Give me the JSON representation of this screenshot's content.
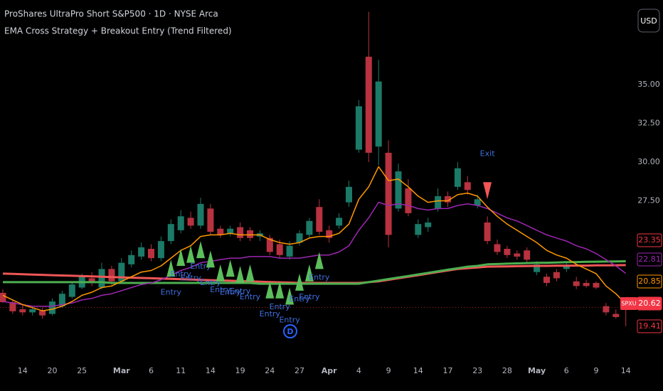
{
  "header": {
    "title": "ProShares UltraPro Short S&P500 · 1D · NYSE Arca",
    "indicator": "EMA Cross Strategy + Breakout Entry (Trend Filtered)",
    "currency_button": "USD"
  },
  "chart_data": {
    "type": "candlestick",
    "categories": [
      null,
      null,
      "14",
      null,
      null,
      "20",
      null,
      null,
      "25",
      null,
      null,
      null,
      "Mar",
      null,
      null,
      "6",
      null,
      null,
      "11",
      null,
      null,
      "14",
      null,
      null,
      "19",
      null,
      null,
      "24",
      null,
      null,
      "27",
      null,
      null,
      "Apr",
      null,
      null,
      "4",
      null,
      null,
      "9",
      null,
      null,
      "14",
      null,
      null,
      "17",
      null,
      null,
      "23",
      null,
      null,
      "28",
      null,
      null,
      "May",
      null,
      null,
      "6",
      null,
      null,
      "9",
      null,
      null,
      "14"
    ],
    "open": [
      21.56,
      20.96,
      20.5,
      20.3,
      20.4,
      20.2,
      20.7,
      21.3,
      21.9,
      22.5,
      21.9,
      23.1,
      22.3,
      23.4,
      23.9,
      24.4,
      23.8,
      24.9,
      25.6,
      26.4,
      25.9,
      27.0,
      25.7,
      25.4,
      25.8,
      25.6,
      25.2,
      25.1,
      24.7,
      23.9,
      24.8,
      25.3,
      27.1,
      25.6,
      25.9,
      27.4,
      30.8,
      36.8,
      31.0,
      30.6,
      27.0,
      28.3,
      25.3,
      25.8,
      27.0,
      27.8,
      28.4,
      28.7,
      27.2,
      26.1,
      24.7,
      24.4,
      24.1,
      24.3,
      22.9,
      22.6,
      22.9,
      23.1,
      22.3,
      22.2,
      22.2,
      20.7,
      20.2,
      20.9
    ],
    "high": [
      21.8,
      21.1,
      20.8,
      20.7,
      20.6,
      21.2,
      21.7,
      22.3,
      22.8,
      22.9,
      23.5,
      23.3,
      23.8,
      24.3,
      24.8,
      24.7,
      25.2,
      26.3,
      26.9,
      26.8,
      27.7,
      27.3,
      25.9,
      25.9,
      26.1,
      25.8,
      25.6,
      25.3,
      25.0,
      24.9,
      25.6,
      26.4,
      27.6,
      25.9,
      26.7,
      28.8,
      34.0,
      39.7,
      36.6,
      31.4,
      29.9,
      28.9,
      26.3,
      26.4,
      28.3,
      28.1,
      30.0,
      29.1,
      27.9,
      26.5,
      25.0,
      24.6,
      24.3,
      24.5,
      23.6,
      22.8,
      23.1,
      23.5,
      22.6,
      22.4,
      22.3,
      20.9,
      20.5,
      21.0
    ],
    "low": [
      20.9,
      20.2,
      20.1,
      20.1,
      19.9,
      20.1,
      20.6,
      21.2,
      21.8,
      22.0,
      21.8,
      22.1,
      22.2,
      23.2,
      23.7,
      23.6,
      23.6,
      24.7,
      25.4,
      25.7,
      25.7,
      25.3,
      25.1,
      25.2,
      24.9,
      24.9,
      24.9,
      24.0,
      23.8,
      23.7,
      24.6,
      25.1,
      25.3,
      24.8,
      25.7,
      27.1,
      30.6,
      30.0,
      29.8,
      24.5,
      26.8,
      26.5,
      25.1,
      25.5,
      26.8,
      27.1,
      28.2,
      27.9,
      27.0,
      24.7,
      24.0,
      23.8,
      23.7,
      23.5,
      22.7,
      22.0,
      22.3,
      22.9,
      21.8,
      21.9,
      21.8,
      20.1,
      19.9,
      19.41
    ],
    "close": [
      20.96,
      20.37,
      20.3,
      20.5,
      20.1,
      21.0,
      21.5,
      22.1,
      22.6,
      22.2,
      23.1,
      22.3,
      23.5,
      24.0,
      24.5,
      23.8,
      24.9,
      26.0,
      26.5,
      25.9,
      27.3,
      25.5,
      25.3,
      25.7,
      25.1,
      25.1,
      25.4,
      24.2,
      24.0,
      24.6,
      25.4,
      26.2,
      25.5,
      25.1,
      26.4,
      28.4,
      33.6,
      30.6,
      35.2,
      25.3,
      29.4,
      26.7,
      26.0,
      26.1,
      27.8,
      27.4,
      29.6,
      28.2,
      27.6,
      24.9,
      24.2,
      24.0,
      23.9,
      23.7,
      23.4,
      22.2,
      22.5,
      23.3,
      22.0,
      22.0,
      21.9,
      20.3,
      20.0,
      20.62
    ],
    "up_color": "#1b7a68",
    "down_color": "#b8323f",
    "ylim": [
      17.06,
      40.46
    ],
    "yticks": [
      {
        "value": 27.5,
        "label": "27.50"
      },
      {
        "value": 30,
        "label": "30.00"
      },
      {
        "value": 32.5,
        "label": "32.50"
      },
      {
        "value": 35,
        "label": "35.00"
      }
    ],
    "grid": false,
    "lines": [
      {
        "color": "#f05656",
        "width": 3,
        "values": [
          22.8,
          22.78,
          22.76,
          22.74,
          22.72,
          22.7,
          22.68,
          22.66,
          22.64,
          22.62,
          22.6,
          22.58,
          22.56,
          22.54,
          22.52,
          22.5,
          22.48,
          22.46,
          22.44,
          22.42,
          22.4,
          22.38,
          22.36,
          22.34,
          22.32,
          22.3,
          22.28,
          22.26,
          22.24,
          22.22,
          22.2,
          22.2,
          22.2,
          22.2,
          22.2,
          22.2,
          22.2,
          22.25,
          22.3,
          22.4,
          22.5,
          22.6,
          22.7,
          22.8,
          22.9,
          23.0,
          23.1,
          23.15,
          23.2,
          23.25,
          23.26,
          23.27,
          23.28,
          23.29,
          23.3,
          23.3,
          23.31,
          23.31,
          23.32,
          23.32,
          23.33,
          23.33,
          23.34,
          23.35
        ]
      },
      {
        "color": "#4caf50",
        "width": 3,
        "values": [
          22.25,
          22.25,
          22.25,
          22.25,
          22.25,
          22.25,
          22.25,
          22.25,
          22.25,
          22.25,
          22.25,
          22.2,
          22.2,
          22.2,
          22.2,
          22.2,
          22.2,
          22.2,
          22.2,
          22.2,
          22.2,
          22.2,
          22.2,
          22.2,
          22.2,
          22.2,
          22.15,
          22.15,
          22.15,
          22.15,
          22.15,
          22.15,
          22.15,
          22.15,
          22.15,
          22.15,
          22.15,
          22.25,
          22.35,
          22.45,
          22.55,
          22.65,
          22.75,
          22.85,
          22.95,
          23.05,
          23.15,
          23.25,
          23.3,
          23.4,
          23.42,
          23.44,
          23.46,
          23.48,
          23.5,
          23.5,
          23.52,
          23.54,
          23.55,
          23.56,
          23.57,
          23.58,
          23.59,
          23.6
        ]
      },
      {
        "color": "#9c27b0",
        "width": 1.5,
        "values": [
          21.0,
          20.9,
          20.8,
          20.7,
          20.7,
          20.7,
          20.8,
          20.9,
          21.1,
          21.2,
          21.4,
          21.5,
          21.7,
          21.9,
          22.1,
          22.2,
          22.4,
          22.7,
          23.0,
          23.2,
          23.5,
          23.6,
          23.7,
          23.8,
          23.8,
          23.9,
          23.9,
          23.9,
          23.8,
          23.8,
          23.8,
          23.9,
          24.0,
          24.0,
          24.2,
          24.6,
          25.6,
          26.4,
          27.4,
          27.2,
          27.3,
          27.2,
          27.0,
          26.9,
          27.0,
          27.0,
          27.2,
          27.3,
          27.2,
          27.0,
          26.7,
          26.4,
          26.2,
          25.9,
          25.6,
          25.3,
          25.1,
          24.9,
          24.6,
          24.4,
          24.1,
          23.7,
          23.3,
          22.81
        ]
      },
      {
        "color": "#ff9800",
        "width": 1.5,
        "values": [
          21.4,
          21.1,
          20.8,
          20.6,
          20.4,
          20.5,
          20.7,
          21.0,
          21.4,
          21.6,
          21.9,
          22.0,
          22.3,
          22.6,
          22.9,
          23.0,
          23.3,
          23.8,
          24.3,
          24.6,
          25.2,
          25.3,
          25.3,
          25.4,
          25.3,
          25.3,
          25.3,
          25.0,
          24.8,
          24.7,
          24.8,
          25.1,
          25.2,
          25.2,
          25.4,
          26.0,
          27.6,
          28.4,
          29.7,
          28.8,
          28.9,
          28.4,
          27.8,
          27.4,
          27.5,
          27.5,
          27.9,
          28.0,
          27.8,
          27.1,
          26.5,
          26.0,
          25.6,
          25.2,
          24.8,
          24.3,
          24.0,
          23.8,
          23.4,
          23.1,
          22.8,
          22.0,
          21.5,
          20.85
        ]
      }
    ],
    "markers": [
      {
        "name": "Entry",
        "color": "#5cbf5c",
        "label_color": "#3f6fe0",
        "direction": "up",
        "values": [
          null,
          null,
          null,
          null,
          null,
          null,
          null,
          null,
          null,
          null,
          null,
          null,
          null,
          null,
          null,
          null,
          null,
          23.7,
          24.4,
          24.6,
          24.9,
          24.3,
          23.4,
          23.7,
          23.3,
          23.4,
          null,
          22.3,
          22.3,
          21.9,
          22.8,
          23.4,
          24.2,
          null,
          null,
          null,
          null,
          null,
          null,
          null,
          null,
          null,
          null,
          null,
          null,
          null,
          null,
          null,
          null,
          null,
          null,
          null,
          null,
          null,
          null,
          null,
          null,
          null,
          null,
          null,
          null,
          null,
          null,
          null
        ]
      },
      {
        "name": "Exit",
        "color": "#f05656",
        "label_color": "#3f6fe0",
        "direction": "down",
        "values": [
          null,
          null,
          null,
          null,
          null,
          null,
          null,
          null,
          null,
          null,
          null,
          null,
          null,
          null,
          null,
          null,
          null,
          null,
          null,
          null,
          null,
          null,
          null,
          null,
          null,
          null,
          null,
          null,
          null,
          null,
          null,
          null,
          null,
          null,
          null,
          null,
          null,
          null,
          null,
          null,
          null,
          null,
          null,
          null,
          null,
          null,
          null,
          null,
          null,
          27.6,
          null,
          null,
          null,
          null,
          null,
          null,
          null,
          null,
          null,
          null,
          null,
          null,
          null,
          null
        ]
      }
    ],
    "price_labels": [
      {
        "value": 23.35,
        "color": "#f23645"
      },
      {
        "value": 22.81,
        "color": "#9c27b0"
      },
      {
        "value": 20.85,
        "color": "#ff9800"
      },
      {
        "value": 20.62,
        "color": "#f23645"
      },
      {
        "value": 19.41,
        "color": "#f23645"
      }
    ],
    "symbol": "SPXU",
    "dividend_marker": "D"
  }
}
